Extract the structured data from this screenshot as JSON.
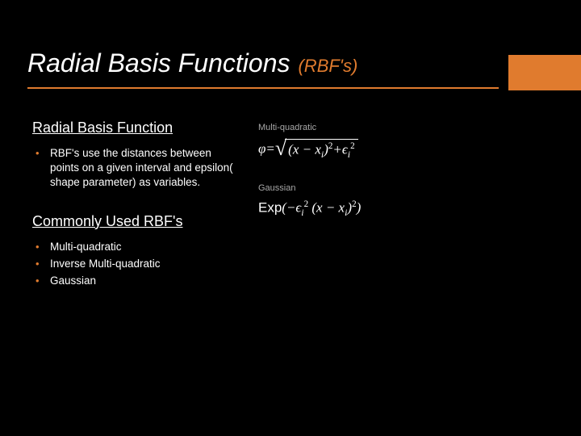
{
  "colors": {
    "background": "#000000",
    "text": "#ffffff",
    "accent": "#e07b2e",
    "muted": "#a8a8a8"
  },
  "title": {
    "main": "Radial Basis Functions",
    "sub": "(RBF's)"
  },
  "left": {
    "section1": {
      "heading": "Radial Basis Function",
      "items": [
        "RBF's use the distances between points on a given interval and epsilon( shape parameter) as variables."
      ]
    },
    "section2": {
      "heading": "Commonly Used RBF's",
      "items": [
        "Multi-quadratic",
        "Inverse Multi-quadratic",
        "Gaussian"
      ]
    }
  },
  "right": {
    "formula1": {
      "label": "Multi-quadratic",
      "phi": "φ",
      "equals": "=",
      "sqrt_inner_a": "(x − x",
      "sqrt_inner_sub": "i",
      "sqrt_inner_b": ")",
      "sqrt_inner_exp1": "2",
      "sqrt_inner_plus": "+ϵ",
      "sqrt_inner_sub2": "i",
      "sqrt_inner_exp2": "2"
    },
    "formula2": {
      "label": "Gaussian",
      "exp": "Exp",
      "open": "(−ϵ",
      "sub1": "i",
      "exp1": "2",
      "mid": " (x − x",
      "sub2": "i",
      "close": ")",
      "exp2": "2",
      "end": ")"
    }
  }
}
